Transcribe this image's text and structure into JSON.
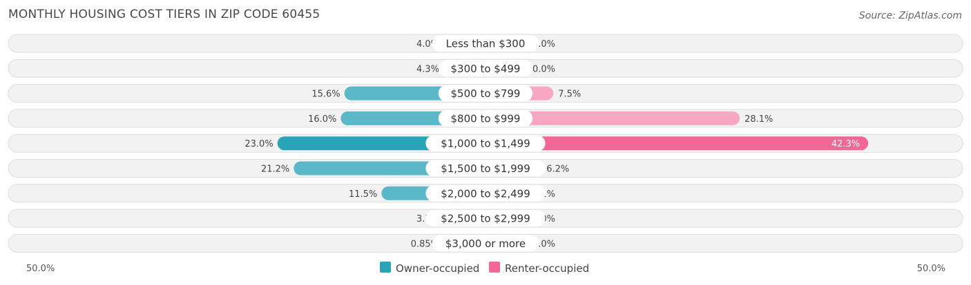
{
  "title": "MONTHLY HOUSING COST TIERS IN ZIP CODE 60455",
  "source": "Source: ZipAtlas.com",
  "colors": {
    "owner": "#5ab8c8",
    "owner_strong": "#2aa5b8",
    "renter": "#f7a7c2",
    "renter_strong": "#f06893",
    "row_bg": "#f2f2f2",
    "row_border": "#dddddd"
  },
  "chart_data": {
    "type": "bar",
    "orientation": "horizontal-diverging",
    "categories": [
      "Less than $300",
      "$300 to $499",
      "$500 to $799",
      "$800 to $999",
      "$1,000 to $1,499",
      "$1,500 to $1,999",
      "$2,000 to $2,499",
      "$2,500 to $2,999",
      "$3,000 or more"
    ],
    "series": [
      {
        "name": "Owner-occupied",
        "values": [
          4.0,
          4.3,
          15.6,
          16.0,
          23.0,
          21.2,
          11.5,
          3.7,
          0.85
        ],
        "labels": [
          "4.0%",
          "4.3%",
          "15.6%",
          "16.0%",
          "23.0%",
          "21.2%",
          "11.5%",
          "3.7%",
          "0.85%"
        ]
      },
      {
        "name": "Renter-occupied",
        "values": [
          1.0,
          0.0,
          7.5,
          28.1,
          42.3,
          6.2,
          3.1,
          0.0,
          0.0
        ],
        "labels": [
          "1.0%",
          "0.0%",
          "7.5%",
          "28.1%",
          "42.3%",
          "6.2%",
          "3.1%",
          "0.0%",
          "0.0%"
        ]
      }
    ],
    "axis_min_label": "50.0%",
    "axis_max_label": "50.0%",
    "xlim": [
      -50,
      50
    ],
    "legend_placement": "bottom-center"
  }
}
